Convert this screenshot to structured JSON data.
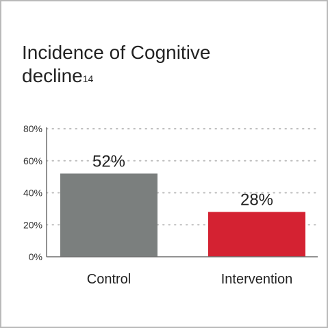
{
  "chart_data": {
    "type": "bar",
    "title": "Incidence of Cognitive decline",
    "title_main": "Incidence of Cognitive",
    "title_line2": "decline",
    "title_superscript": "14",
    "categories": [
      "Control",
      "Intervention"
    ],
    "values": [
      52,
      28
    ],
    "value_labels": [
      "52%",
      "28%"
    ],
    "bar_colors": [
      "#7b7f7e",
      "#d42232"
    ],
    "ylim": [
      0,
      80
    ],
    "yticks": [
      0,
      20,
      40,
      60,
      80
    ],
    "ytick_labels": [
      "0%",
      "20%",
      "40%",
      "60%",
      "80%"
    ],
    "grid": true,
    "xlabel": "",
    "ylabel": ""
  }
}
